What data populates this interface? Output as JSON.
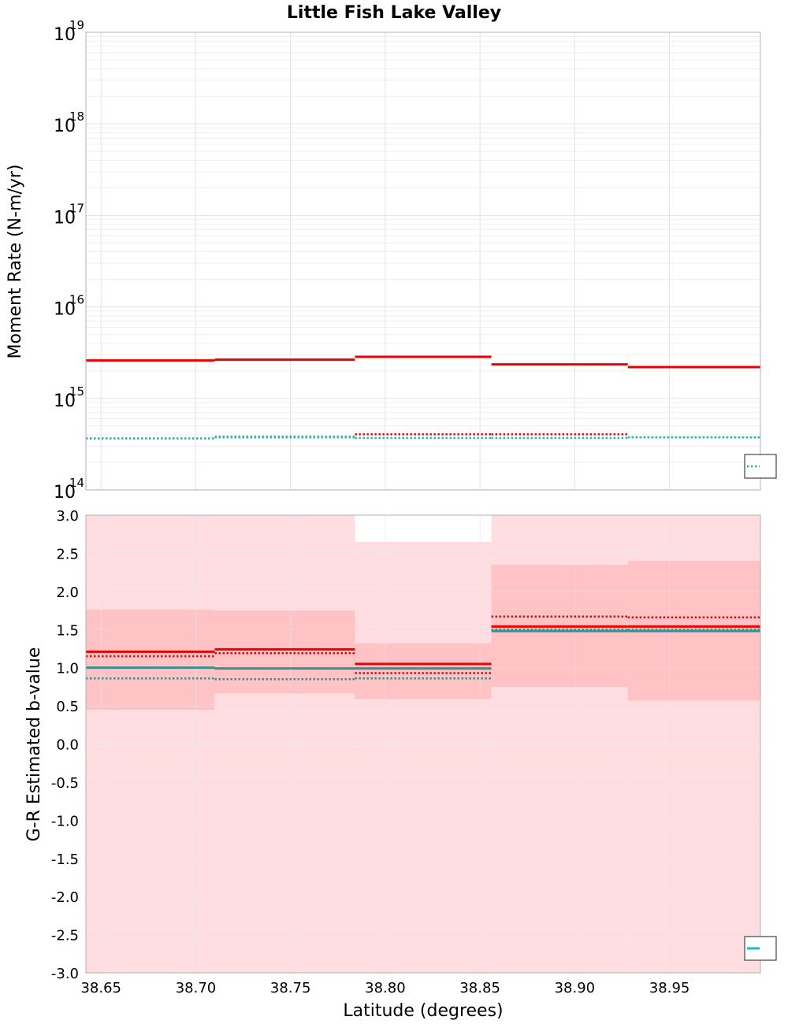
{
  "chart_data": {
    "type": "line",
    "title": "Little Fish Lake Valley",
    "xlabel": "Latitude (degrees)",
    "xlim": [
      38.642,
      38.998
    ],
    "x_ticks": [
      "38.65",
      "38.70",
      "38.75",
      "38.80",
      "38.85",
      "38.90",
      "38.95"
    ],
    "x_tick_values": [
      38.65,
      38.7,
      38.75,
      38.8,
      38.85,
      38.9,
      38.95
    ],
    "bin_edges": [
      38.642,
      38.71,
      38.784,
      38.856,
      38.928,
      38.998
    ],
    "top_panel": {
      "ylabel": "Moment Rate (N-m/yr)",
      "yscale": "log",
      "ylim": [
        100000000000000.0,
        1e+19
      ],
      "y_ticks": [
        {
          "base": "10",
          "exp": "14"
        },
        {
          "base": "10",
          "exp": "15"
        },
        {
          "base": "10",
          "exp": "16"
        },
        {
          "base": "10",
          "exp": "17"
        },
        {
          "base": "10",
          "exp": "18"
        },
        {
          "base": "10",
          "exp": "19"
        }
      ],
      "series": [
        {
          "name": "red solid",
          "color": "#ee0000",
          "style": "solid",
          "values": [
            2600000000000000.0,
            2650000000000000.0,
            2850000000000000.0,
            2350000000000000.0,
            2200000000000000.0
          ]
        },
        {
          "name": "red dotted",
          "color": "#cc1111",
          "style": "dotted",
          "values": [
            365000000000000.0,
            380000000000000.0,
            405000000000000.0,
            405000000000000.0,
            375000000000000.0
          ]
        },
        {
          "name": "cyan dotted",
          "color": "#22bbbb",
          "style": "dotted",
          "values": [
            365000000000000.0,
            375000000000000.0,
            370000000000000.0,
            370000000000000.0,
            375000000000000.0
          ]
        }
      ]
    },
    "bottom_panel": {
      "ylabel": "G-R Estimated b-value",
      "ylim": [
        -3.0,
        3.0
      ],
      "y_ticks": [
        "3.0",
        "2.5",
        "2.0",
        "1.5",
        "1.0",
        "0.5",
        "0.0",
        "-0.5",
        "-1.0",
        "-1.5",
        "-2.0",
        "-2.5",
        "-3.0"
      ],
      "y_tick_values": [
        3.0,
        2.5,
        2.0,
        1.5,
        1.0,
        0.5,
        0.0,
        -0.5,
        -1.0,
        -1.5,
        -2.0,
        -2.5,
        -3.0
      ],
      "light_band": {
        "color": "#ffdde0",
        "lower": [
          -3.0,
          -3.0,
          -3.0,
          -3.0,
          -3.0
        ],
        "upper": [
          3.0,
          3.0,
          2.65,
          3.0,
          3.0
        ]
      },
      "dark_band": {
        "color": "#ffc3c6",
        "lower": [
          0.45,
          0.66,
          0.59,
          0.75,
          0.57
        ],
        "upper": [
          1.76,
          1.75,
          1.32,
          2.35,
          2.4
        ]
      },
      "series": [
        {
          "name": "red solid",
          "color": "#ee0000",
          "style": "solid",
          "values": [
            1.21,
            1.24,
            1.05,
            1.54,
            1.54
          ]
        },
        {
          "name": "red dotted",
          "color": "#cc1111",
          "style": "dotted",
          "values": [
            1.15,
            1.19,
            0.93,
            1.67,
            1.66
          ]
        },
        {
          "name": "teal solid",
          "color": "#3a8f8f",
          "style": "solid",
          "values": [
            1.0,
            0.99,
            0.99,
            1.48,
            1.48
          ]
        },
        {
          "name": "teal dotted",
          "color": "#3a8f8f",
          "style": "dotted",
          "values": [
            0.86,
            0.85,
            0.86,
            1.5,
            1.5
          ]
        }
      ]
    },
    "legend_top": {
      "position": "bottom-right",
      "swatch_color": "#22bbbb",
      "swatch_style": "dotted"
    },
    "legend_bottom": {
      "position": "bottom-right",
      "swatch_color": "#22bbbb",
      "swatch_style": "solid"
    }
  }
}
